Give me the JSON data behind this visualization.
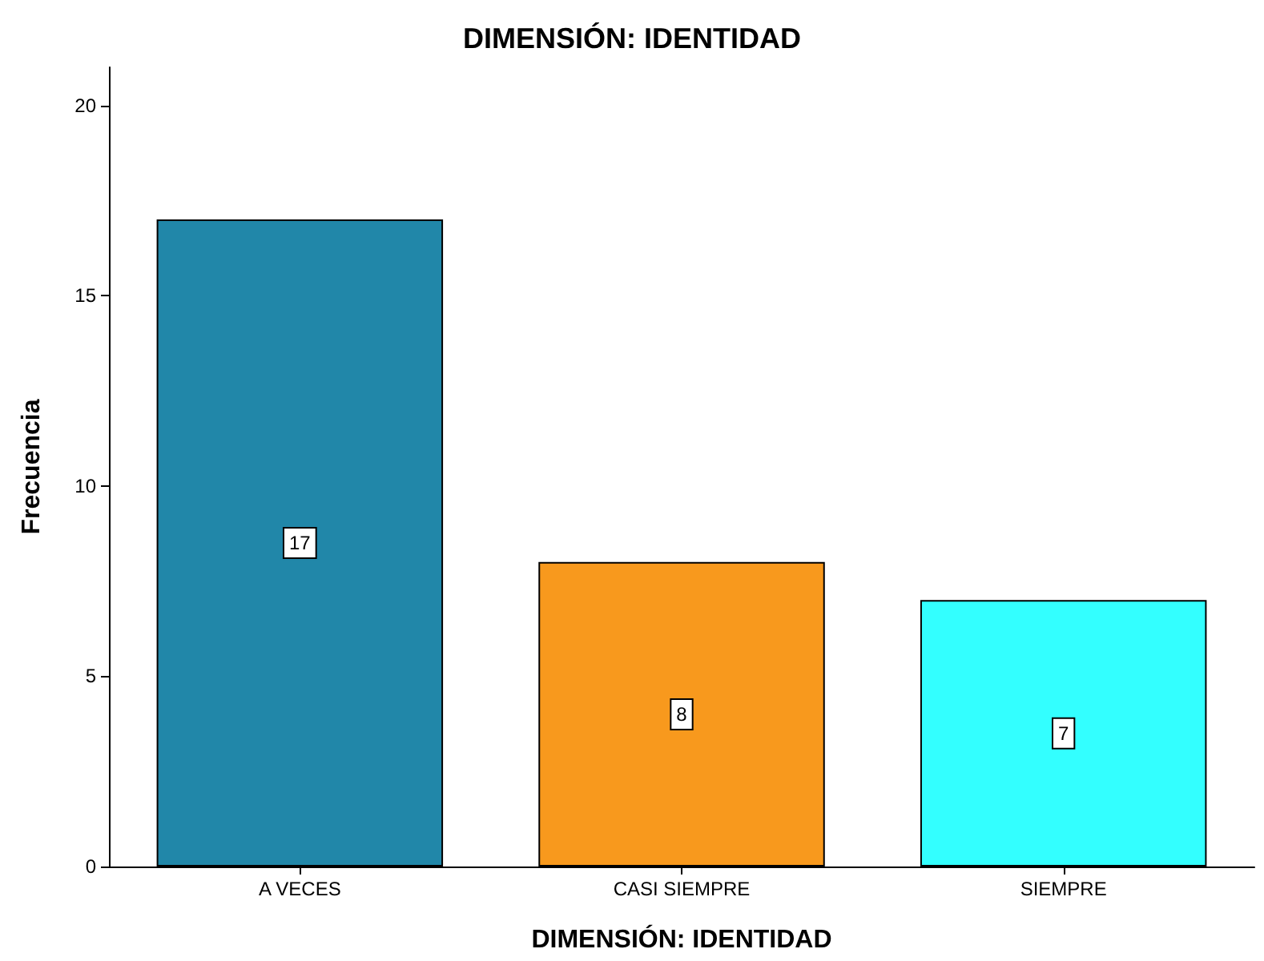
{
  "chart_data": {
    "type": "bar",
    "title": "DIMENSIÓN: IDENTIDAD",
    "xlabel": "DIMENSIÓN: IDENTIDAD",
    "ylabel": "Frecuencia",
    "categories": [
      "A VECES",
      "CASI SIEMPRE",
      "SIEMPRE"
    ],
    "values": [
      17,
      8,
      7
    ],
    "colors": [
      "#2187a9",
      "#f8991d",
      "#33ffff"
    ],
    "ylim": [
      0,
      21
    ],
    "yticks": [
      0,
      5,
      10,
      15,
      20
    ],
    "grid": false,
    "data_labels": true
  }
}
